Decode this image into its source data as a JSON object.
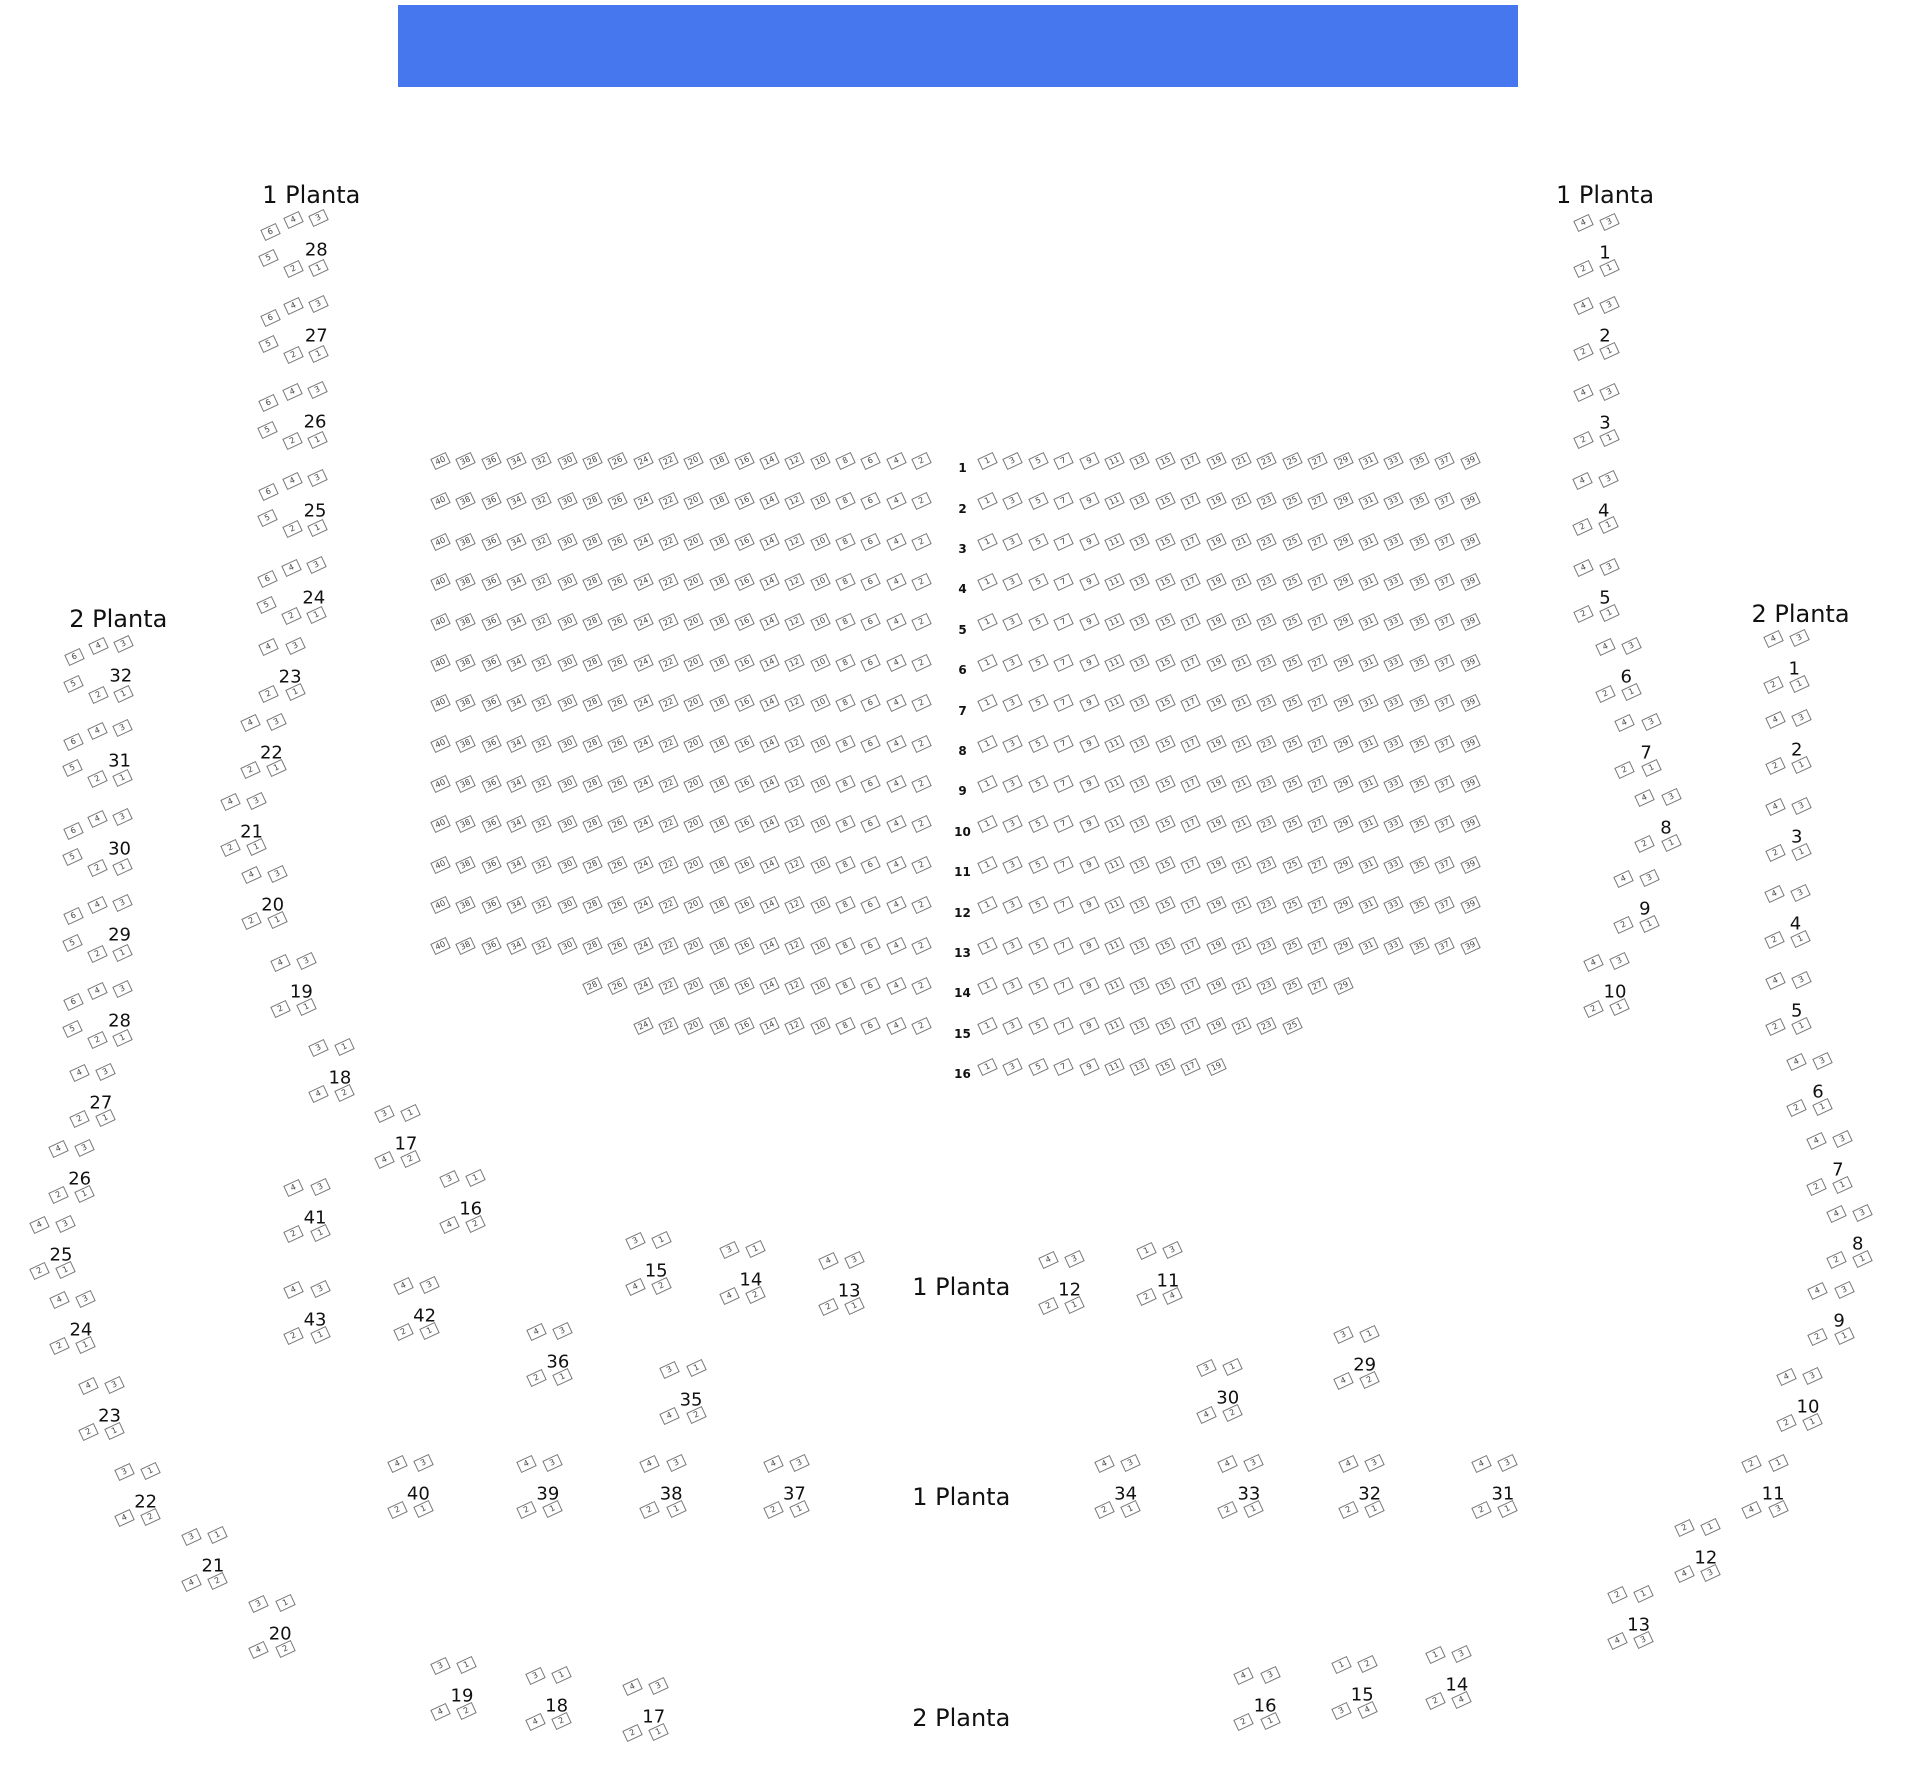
{
  "stage": {
    "color": "#4677ef"
  },
  "sections": [
    "1 Planta",
    "1 Planta",
    "1 Planta",
    "1 Planta",
    "2 Planta",
    "2 Planta",
    "2 Planta"
  ],
  "main_rows": [
    {
      "row": "1",
      "left": [
        40,
        38,
        36,
        34,
        32,
        30,
        28,
        26,
        24,
        22,
        20,
        18,
        16,
        14,
        12,
        10,
        8,
        6,
        4,
        2
      ],
      "right": [
        1,
        3,
        5,
        7,
        9,
        11,
        13,
        15,
        17,
        19,
        21,
        23,
        25,
        27,
        29,
        31,
        33,
        35,
        37,
        39
      ]
    },
    {
      "row": "2",
      "left": [
        40,
        38,
        36,
        34,
        32,
        30,
        28,
        26,
        24,
        22,
        20,
        18,
        16,
        14,
        12,
        10,
        8,
        6,
        4,
        2
      ],
      "right": [
        1,
        3,
        5,
        7,
        9,
        11,
        13,
        15,
        17,
        19,
        21,
        23,
        25,
        27,
        29,
        31,
        33,
        35,
        37,
        39
      ]
    },
    {
      "row": "3",
      "left": [
        40,
        38,
        36,
        34,
        32,
        30,
        28,
        26,
        24,
        22,
        20,
        18,
        16,
        14,
        12,
        10,
        8,
        6,
        4,
        2
      ],
      "right": [
        1,
        3,
        5,
        7,
        9,
        11,
        13,
        15,
        17,
        19,
        21,
        23,
        25,
        27,
        29,
        31,
        33,
        35,
        37,
        39
      ]
    },
    {
      "row": "4",
      "left": [
        40,
        38,
        36,
        34,
        32,
        30,
        28,
        26,
        24,
        22,
        20,
        18,
        16,
        14,
        12,
        10,
        8,
        6,
        4,
        2
      ],
      "right": [
        1,
        3,
        5,
        7,
        9,
        11,
        13,
        15,
        17,
        19,
        21,
        23,
        25,
        27,
        29,
        31,
        33,
        35,
        37,
        39
      ]
    },
    {
      "row": "5",
      "left": [
        40,
        38,
        36,
        34,
        32,
        30,
        28,
        26,
        24,
        22,
        20,
        18,
        16,
        14,
        12,
        10,
        8,
        6,
        4,
        2
      ],
      "right": [
        1,
        3,
        5,
        7,
        9,
        11,
        13,
        15,
        17,
        19,
        21,
        23,
        25,
        27,
        29,
        31,
        33,
        35,
        37,
        39
      ]
    },
    {
      "row": "6",
      "left": [
        40,
        38,
        36,
        34,
        32,
        30,
        28,
        26,
        24,
        22,
        20,
        18,
        16,
        14,
        12,
        10,
        8,
        6,
        4,
        2
      ],
      "right": [
        1,
        3,
        5,
        7,
        9,
        11,
        13,
        15,
        17,
        19,
        21,
        23,
        25,
        27,
        29,
        31,
        33,
        35,
        37,
        39
      ]
    },
    {
      "row": "7",
      "left": [
        40,
        38,
        36,
        34,
        32,
        30,
        28,
        26,
        24,
        22,
        20,
        18,
        16,
        14,
        12,
        10,
        8,
        6,
        4,
        2
      ],
      "right": [
        1,
        3,
        5,
        7,
        9,
        11,
        13,
        15,
        17,
        19,
        21,
        23,
        25,
        27,
        29,
        31,
        33,
        35,
        37,
        39
      ]
    },
    {
      "row": "8",
      "left": [
        40,
        38,
        36,
        34,
        32,
        30,
        28,
        26,
        24,
        22,
        20,
        18,
        16,
        14,
        12,
        10,
        8,
        6,
        4,
        2
      ],
      "right": [
        1,
        3,
        5,
        7,
        9,
        11,
        13,
        15,
        17,
        19,
        21,
        23,
        25,
        27,
        29,
        31,
        33,
        35,
        37,
        39
      ]
    },
    {
      "row": "9",
      "left": [
        40,
        38,
        36,
        34,
        32,
        30,
        28,
        26,
        24,
        22,
        20,
        18,
        16,
        14,
        12,
        10,
        8,
        6,
        4,
        2
      ],
      "right": [
        1,
        3,
        5,
        7,
        9,
        11,
        13,
        15,
        17,
        19,
        21,
        23,
        25,
        27,
        29,
        31,
        33,
        35,
        37,
        39
      ]
    },
    {
      "row": "10",
      "left": [
        40,
        38,
        36,
        34,
        32,
        30,
        28,
        26,
        24,
        22,
        20,
        18,
        16,
        14,
        12,
        10,
        8,
        6,
        4,
        2
      ],
      "right": [
        1,
        3,
        5,
        7,
        9,
        11,
        13,
        15,
        17,
        19,
        21,
        23,
        25,
        27,
        29,
        31,
        33,
        35,
        37,
        39
      ]
    },
    {
      "row": "11",
      "left": [
        40,
        38,
        36,
        34,
        32,
        30,
        28,
        26,
        24,
        22,
        20,
        18,
        16,
        14,
        12,
        10,
        8,
        6,
        4,
        2
      ],
      "right": [
        1,
        3,
        5,
        7,
        9,
        11,
        13,
        15,
        17,
        19,
        21,
        23,
        25,
        27,
        29,
        31,
        33,
        35,
        37,
        39
      ]
    },
    {
      "row": "12",
      "left": [
        40,
        38,
        36,
        34,
        32,
        30,
        28,
        26,
        24,
        22,
        20,
        18,
        16,
        14,
        12,
        10,
        8,
        6,
        4,
        2
      ],
      "right": [
        1,
        3,
        5,
        7,
        9,
        11,
        13,
        15,
        17,
        19,
        21,
        23,
        25,
        27,
        29,
        31,
        33,
        35,
        37,
        39
      ]
    },
    {
      "row": "13",
      "left": [
        40,
        38,
        36,
        34,
        32,
        30,
        28,
        26,
        24,
        22,
        20,
        18,
        16,
        14,
        12,
        10,
        8,
        6,
        4,
        2
      ],
      "right": [
        1,
        3,
        5,
        7,
        9,
        11,
        13,
        15,
        17,
        19,
        21,
        23,
        25,
        27,
        29,
        31,
        33,
        35,
        37,
        39
      ]
    },
    {
      "row": "14",
      "left": [
        28,
        26,
        24,
        22,
        20,
        18,
        16,
        14,
        12,
        10,
        8,
        6,
        4,
        2
      ],
      "right": [
        1,
        3,
        5,
        7,
        9,
        11,
        13,
        15,
        17,
        19,
        21,
        23,
        25,
        27,
        29
      ]
    },
    {
      "row": "15",
      "left": [
        24,
        22,
        20,
        18,
        16,
        14,
        12,
        10,
        8,
        6,
        4,
        2
      ],
      "right": [
        1,
        3,
        5,
        7,
        9,
        11,
        13,
        15,
        17,
        19,
        21,
        23,
        25
      ]
    },
    {
      "row": "16",
      "left": [],
      "right": [
        1,
        3,
        5,
        7,
        9,
        11,
        13,
        15,
        17,
        19
      ]
    }
  ],
  "boxes": [
    {
      "label": "28",
      "seats": [
        "6",
        "4",
        "3",
        "5",
        "2",
        "1"
      ]
    },
    {
      "label": "27",
      "seats": [
        "6",
        "4",
        "3",
        "5",
        "2",
        "1"
      ]
    },
    {
      "label": "26",
      "seats": [
        "6",
        "4",
        "3",
        "5",
        "2",
        "1"
      ]
    },
    {
      "label": "25",
      "seats": [
        "6",
        "4",
        "3",
        "5",
        "2",
        "1"
      ]
    },
    {
      "label": "24",
      "seats": [
        "6",
        "4",
        "3",
        "5",
        "2",
        "1"
      ]
    },
    {
      "label": "23",
      "seats": [
        "4",
        "3",
        "2",
        "1"
      ]
    },
    {
      "label": "22",
      "seats": [
        "4",
        "3",
        "2",
        "1"
      ]
    },
    {
      "label": "21",
      "seats": [
        "4",
        "3",
        "2",
        "1"
      ]
    },
    {
      "label": "20",
      "seats": [
        "4",
        "3",
        "2",
        "1"
      ]
    },
    {
      "label": "19",
      "seats": [
        "4",
        "3",
        "2",
        "1"
      ]
    },
    {
      "label": "18",
      "seats": [
        "3",
        "1",
        "4",
        "2"
      ]
    },
    {
      "label": "17",
      "seats": [
        "3",
        "1",
        "4",
        "2"
      ]
    },
    {
      "label": "16",
      "seats": [
        "3",
        "1",
        "4",
        "2"
      ]
    },
    {
      "label": "41",
      "seats": [
        "4",
        "3",
        "2",
        "1"
      ]
    },
    {
      "label": "43",
      "seats": [
        "4",
        "3",
        "2",
        "1"
      ]
    },
    {
      "label": "42",
      "seats": [
        "4",
        "3",
        "2",
        "1"
      ]
    },
    {
      "label": "36",
      "seats": [
        "4",
        "3",
        "2",
        "1"
      ]
    },
    {
      "label": "15",
      "seats": [
        "3",
        "1",
        "4",
        "2"
      ]
    },
    {
      "label": "14",
      "seats": [
        "3",
        "1",
        "4",
        "2"
      ]
    },
    {
      "label": "13",
      "seats": [
        "4",
        "3",
        "2",
        "1"
      ]
    },
    {
      "label": "35",
      "seats": [
        "3",
        "1",
        "4",
        "2"
      ]
    },
    {
      "label": "12",
      "seats": [
        "4",
        "3",
        "2",
        "1"
      ]
    },
    {
      "label": "11",
      "seats": [
        "1",
        "3",
        "2",
        "4"
      ]
    },
    {
      "label": "30",
      "seats": [
        "3",
        "1",
        "4",
        "2"
      ]
    },
    {
      "label": "29",
      "seats": [
        "3",
        "1",
        "4",
        "2"
      ]
    },
    {
      "label": "40",
      "seats": [
        "4",
        "3",
        "2",
        "1"
      ]
    },
    {
      "label": "39",
      "seats": [
        "4",
        "3",
        "2",
        "1"
      ]
    },
    {
      "label": "38",
      "seats": [
        "4",
        "3",
        "2",
        "1"
      ]
    },
    {
      "label": "37",
      "seats": [
        "4",
        "3",
        "2",
        "1"
      ]
    },
    {
      "label": "34",
      "seats": [
        "4",
        "3",
        "2",
        "1"
      ]
    },
    {
      "label": "33",
      "seats": [
        "4",
        "3",
        "2",
        "1"
      ]
    },
    {
      "label": "32",
      "seats": [
        "4",
        "3",
        "2",
        "1"
      ]
    },
    {
      "label": "31",
      "seats": [
        "4",
        "3",
        "2",
        "1"
      ]
    },
    {
      "label": "19",
      "seats": [
        "3",
        "1",
        "4",
        "2"
      ]
    },
    {
      "label": "18",
      "seats": [
        "3",
        "1",
        "4",
        "2"
      ]
    },
    {
      "label": "17",
      "seats": [
        "4",
        "3",
        "2",
        "1"
      ]
    },
    {
      "label": "16",
      "seats": [
        "4",
        "3",
        "2",
        "1"
      ]
    },
    {
      "label": "15",
      "seats": [
        "1",
        "2",
        "3",
        "4"
      ]
    },
    {
      "label": "14",
      "seats": [
        "1",
        "3",
        "2",
        "4"
      ]
    },
    {
      "label": "1",
      "seats": [
        "4",
        "3",
        "2",
        "1"
      ]
    },
    {
      "label": "2",
      "seats": [
        "4",
        "3",
        "2",
        "1"
      ]
    },
    {
      "label": "3",
      "seats": [
        "4",
        "3",
        "2",
        "1"
      ]
    },
    {
      "label": "4",
      "seats": [
        "4",
        "3",
        "2",
        "1"
      ]
    },
    {
      "label": "5",
      "seats": [
        "4",
        "3",
        "2",
        "1"
      ]
    },
    {
      "label": "6",
      "seats": [
        "4",
        "3",
        "2",
        "1"
      ]
    },
    {
      "label": "7",
      "seats": [
        "4",
        "3",
        "2",
        "1"
      ]
    },
    {
      "label": "8",
      "seats": [
        "4",
        "3",
        "2",
        "1"
      ]
    },
    {
      "label": "9",
      "seats": [
        "4",
        "3",
        "2",
        "1"
      ]
    },
    {
      "label": "10",
      "seats": [
        "4",
        "3",
        "2",
        "1"
      ]
    },
    {
      "label": "32",
      "seats": [
        "6",
        "4",
        "3",
        "5",
        "2",
        "1"
      ]
    },
    {
      "label": "31",
      "seats": [
        "6",
        "4",
        "3",
        "5",
        "2",
        "1"
      ]
    },
    {
      "label": "30",
      "seats": [
        "6",
        "4",
        "3",
        "5",
        "2",
        "1"
      ]
    },
    {
      "label": "29",
      "seats": [
        "6",
        "4",
        "3",
        "5",
        "2",
        "1"
      ]
    },
    {
      "label": "28",
      "seats": [
        "6",
        "4",
        "3",
        "5",
        "2",
        "1"
      ]
    },
    {
      "label": "27",
      "seats": [
        "4",
        "3",
        "2",
        "1"
      ]
    },
    {
      "label": "26",
      "seats": [
        "4",
        "3",
        "2",
        "1"
      ]
    },
    {
      "label": "25",
      "seats": [
        "4",
        "3",
        "2",
        "1"
      ]
    },
    {
      "label": "24",
      "seats": [
        "4",
        "3",
        "2",
        "1"
      ]
    },
    {
      "label": "23",
      "seats": [
        "4",
        "3",
        "2",
        "1"
      ]
    },
    {
      "label": "22",
      "seats": [
        "3",
        "1",
        "4",
        "2"
      ]
    },
    {
      "label": "21",
      "seats": [
        "3",
        "1",
        "4",
        "2"
      ]
    },
    {
      "label": "20",
      "seats": [
        "3",
        "1",
        "4",
        "2"
      ]
    },
    {
      "label": "1",
      "seats": [
        "4",
        "3",
        "2",
        "1"
      ]
    },
    {
      "label": "2",
      "seats": [
        "4",
        "3",
        "2",
        "1"
      ]
    },
    {
      "label": "3",
      "seats": [
        "4",
        "3",
        "2",
        "1"
      ]
    },
    {
      "label": "4",
      "seats": [
        "4",
        "3",
        "2",
        "1"
      ]
    },
    {
      "label": "5",
      "seats": [
        "4",
        "3",
        "2",
        "1"
      ]
    },
    {
      "label": "6",
      "seats": [
        "4",
        "3",
        "2",
        "1"
      ]
    },
    {
      "label": "7",
      "seats": [
        "4",
        "3",
        "2",
        "1"
      ]
    },
    {
      "label": "8",
      "seats": [
        "4",
        "3",
        "2",
        "1"
      ]
    },
    {
      "label": "9",
      "seats": [
        "4",
        "3",
        "2",
        "1"
      ]
    },
    {
      "label": "10",
      "seats": [
        "4",
        "3",
        "2",
        "1"
      ]
    },
    {
      "label": "11",
      "seats": [
        "2",
        "1",
        "4",
        "3"
      ]
    },
    {
      "label": "12",
      "seats": [
        "2",
        "1",
        "4",
        "3"
      ]
    },
    {
      "label": "13",
      "seats": [
        "2",
        "1",
        "4",
        "3"
      ]
    }
  ]
}
